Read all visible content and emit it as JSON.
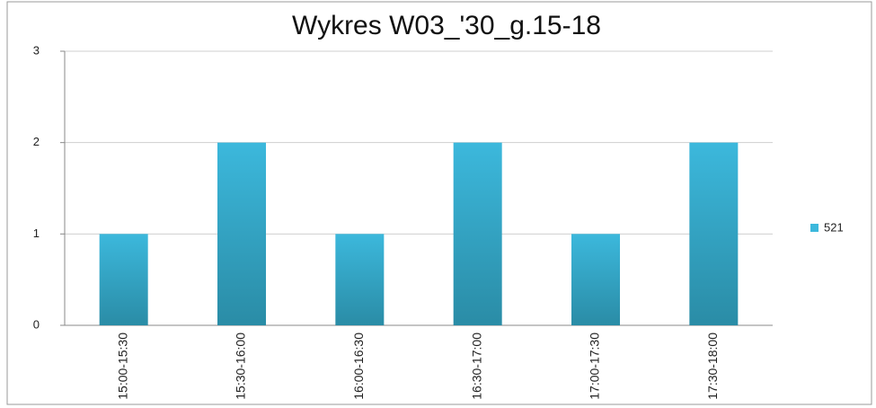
{
  "chart_data": {
    "type": "bar",
    "title": "Wykres W03_'30_g.15-18",
    "categories": [
      "15:00-15:30",
      "15:30-16:00",
      "16:00-16:30",
      "16:30-17:00",
      "17:00-17:30",
      "17:30-18:00"
    ],
    "series": [
      {
        "name": "521",
        "color": "#3cb8dc",
        "values": [
          1,
          2,
          1,
          2,
          1,
          2
        ]
      }
    ],
    "ylim": [
      0,
      3
    ],
    "yticks": [
      0,
      1,
      2,
      3
    ],
    "grid": true,
    "legend": "right"
  }
}
